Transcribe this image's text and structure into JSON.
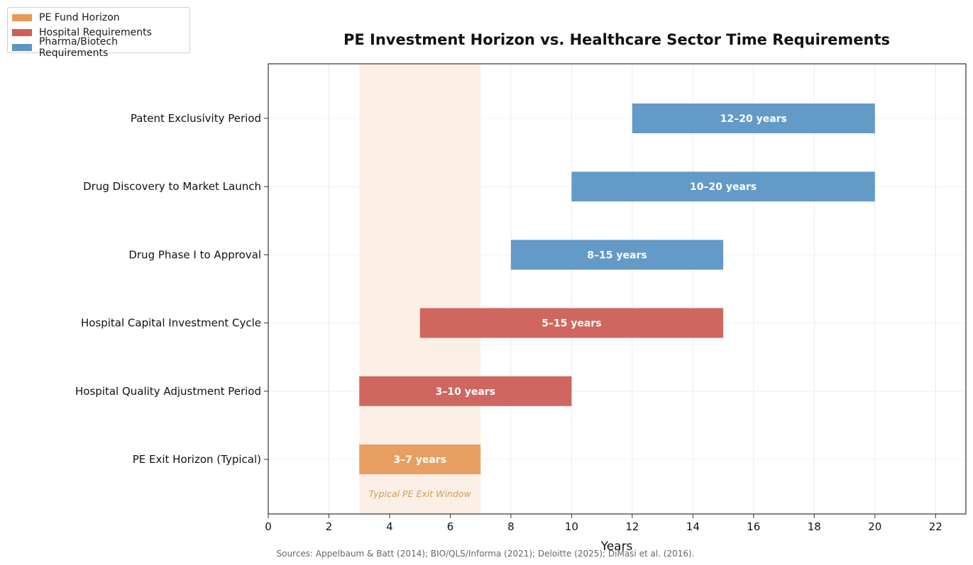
{
  "chart_data": {
    "type": "bar",
    "orientation": "horizontal-range",
    "title": "PE Investment Horizon vs. Healthcare Sector Time Requirements",
    "xlabel": "Years",
    "ylabel": "",
    "xlim": [
      0,
      23
    ],
    "xticks": [
      0,
      2,
      4,
      6,
      8,
      10,
      12,
      14,
      16,
      18,
      20,
      22
    ],
    "grid": true,
    "legend_position": "top-left",
    "legend": [
      {
        "label": "PE Fund Horizon",
        "color": "#E8995A"
      },
      {
        "label": "Hospital Requirements",
        "color": "#CC5F57"
      },
      {
        "label": "Pharma/Biotech Requirements",
        "color": "#5B95C5"
      }
    ],
    "bars": [
      {
        "category": "PE Exit Horizon (Typical)",
        "start": 3,
        "end": 7,
        "label": "3–7 years",
        "group": "PE Fund Horizon",
        "color": "#E8995A"
      },
      {
        "category": "Hospital Quality Adjustment Period",
        "start": 3,
        "end": 10,
        "label": "3–10 years",
        "group": "Hospital Requirements",
        "color": "#CC5F57"
      },
      {
        "category": "Hospital Capital Investment Cycle",
        "start": 5,
        "end": 15,
        "label": "5–15 years",
        "group": "Hospital Requirements",
        "color": "#CC5F57"
      },
      {
        "category": "Drug Phase I to Approval",
        "start": 8,
        "end": 15,
        "label": "8–15 years",
        "group": "Pharma/Biotech Requirements",
        "color": "#5B95C5"
      },
      {
        "category": "Drug Discovery to Market Launch",
        "start": 10,
        "end": 20,
        "label": "10–20 years",
        "group": "Pharma/Biotech Requirements",
        "color": "#5B95C5"
      },
      {
        "category": "Patent Exclusivity Period",
        "start": 12,
        "end": 20,
        "label": "12–20 years",
        "group": "Pharma/Biotech Requirements",
        "color": "#5B95C5"
      }
    ],
    "shaded_region": {
      "start": 3,
      "end": 7,
      "label": "Typical PE Exit Window",
      "color": "#FBE9DC"
    },
    "source_note": "Sources: Appelbaum & Batt (2014); BIO/QLS/Informa (2021); Deloitte (2025); DiMasi et al. (2016)."
  }
}
